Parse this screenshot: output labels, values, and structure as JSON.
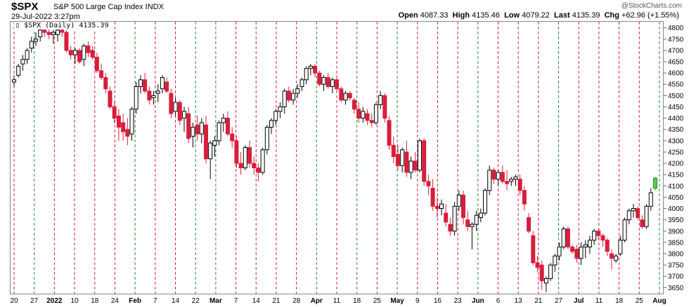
{
  "header": {
    "symbol": "$SPX",
    "name": "S&P 500 Large Cap Index  INDX",
    "date": "29-Jul-2022 3:27pm",
    "open_label": "Open",
    "open": "4087.33",
    "high_label": "High",
    "high": "4135.46",
    "low_label": "Low",
    "low": "4079.22",
    "last_label": "Last",
    "last": "4135.39",
    "chg_label": "Chg",
    "chg": "+62.96 (+1.55%)",
    "watermark": "@StockCharts.com"
  },
  "legend": {
    "text": "$SPX (Daily) 4135.39"
  },
  "colors": {
    "up": "#000000",
    "down": "#d81e3c",
    "green_line": "#2a8a2a",
    "red_line": "#d81e3c",
    "last_candle": "#55cc55"
  },
  "chart_data": {
    "type": "candlestick",
    "title": "$SPX",
    "ylim": [
      3620,
      4830
    ],
    "y_ticks": [
      3650,
      3700,
      3750,
      3800,
      3850,
      3900,
      3950,
      4000,
      4050,
      4100,
      4150,
      4200,
      4250,
      4300,
      4350,
      4400,
      4450,
      4500,
      4550,
      4600,
      4650,
      4700,
      4750,
      4800
    ],
    "x_labels": [
      "20",
      "27",
      "2022",
      "10",
      "18",
      "24",
      "Feb",
      "7",
      "14",
      "22",
      "Mar",
      "7",
      "14",
      "21",
      "28",
      "Apr",
      "11",
      "18",
      "25",
      "May",
      "9",
      "16",
      "23",
      "Jun",
      "6",
      "13",
      "21",
      "27",
      "Jul",
      "11",
      "18",
      "25",
      "Aug"
    ],
    "x_label_bold": [
      "2022",
      "Feb",
      "Mar",
      "Apr",
      "May",
      "Jun",
      "Jul",
      "Aug"
    ],
    "green_lines": [
      "27",
      "18",
      "Feb",
      "22",
      "Mar",
      "Apr",
      "May",
      "23",
      "Jun",
      "27",
      "18",
      "Aug"
    ],
    "grid": "vertical dashed red/green",
    "candles": [
      [
        4560,
        4590,
        4540,
        4570
      ],
      [
        4590,
        4640,
        4580,
        4630
      ],
      [
        4640,
        4680,
        4610,
        4660
      ],
      [
        4660,
        4710,
        4640,
        4700
      ],
      [
        4710,
        4760,
        4690,
        4740
      ],
      [
        4740,
        4780,
        4720,
        4750
      ],
      [
        4760,
        4800,
        4740,
        4790
      ],
      [
        4790,
        4810,
        4760,
        4780
      ],
      [
        4780,
        4800,
        4750,
        4770
      ],
      [
        4770,
        4790,
        4730,
        4780
      ],
      [
        4770,
        4800,
        4740,
        4790
      ],
      [
        4790,
        4810,
        4760,
        4780
      ],
      [
        4780,
        4790,
        4690,
        4700
      ],
      [
        4700,
        4720,
        4660,
        4680
      ],
      [
        4680,
        4710,
        4640,
        4700
      ],
      [
        4700,
        4710,
        4640,
        4650
      ],
      [
        4660,
        4730,
        4630,
        4720
      ],
      [
        4720,
        4740,
        4670,
        4690
      ],
      [
        4700,
        4720,
        4660,
        4670
      ],
      [
        4670,
        4690,
        4600,
        4610
      ],
      [
        4610,
        4640,
        4570,
        4580
      ],
      [
        4580,
        4600,
        4510,
        4530
      ],
      [
        4520,
        4540,
        4440,
        4450
      ],
      [
        4450,
        4470,
        4380,
        4400
      ],
      [
        4410,
        4440,
        4300,
        4360
      ],
      [
        4380,
        4420,
        4300,
        4340
      ],
      [
        4350,
        4400,
        4280,
        4320
      ],
      [
        4330,
        4450,
        4300,
        4440
      ],
      [
        4440,
        4560,
        4420,
        4540
      ],
      [
        4540,
        4590,
        4510,
        4570
      ],
      [
        4570,
        4600,
        4510,
        4520
      ],
      [
        4520,
        4540,
        4460,
        4480
      ],
      [
        4490,
        4520,
        4460,
        4500
      ],
      [
        4510,
        4550,
        4470,
        4520
      ],
      [
        4530,
        4590,
        4510,
        4580
      ],
      [
        4560,
        4580,
        4510,
        4520
      ],
      [
        4510,
        4530,
        4400,
        4420
      ],
      [
        4430,
        4490,
        4410,
        4470
      ],
      [
        4470,
        4480,
        4370,
        4390
      ],
      [
        4400,
        4450,
        4340,
        4430
      ],
      [
        4420,
        4450,
        4290,
        4310
      ],
      [
        4320,
        4380,
        4270,
        4360
      ],
      [
        4370,
        4410,
        4300,
        4330
      ],
      [
        4330,
        4400,
        4290,
        4380
      ],
      [
        4370,
        4410,
        4200,
        4220
      ],
      [
        4220,
        4300,
        4130,
        4290
      ],
      [
        4280,
        4320,
        4230,
        4300
      ],
      [
        4300,
        4390,
        4280,
        4380
      ],
      [
        4380,
        4420,
        4340,
        4400
      ],
      [
        4400,
        4430,
        4320,
        4330
      ],
      [
        4330,
        4360,
        4270,
        4300
      ],
      [
        4300,
        4320,
        4180,
        4200
      ],
      [
        4200,
        4250,
        4150,
        4180
      ],
      [
        4180,
        4280,
        4170,
        4270
      ],
      [
        4270,
        4300,
        4180,
        4200
      ],
      [
        4200,
        4230,
        4150,
        4180
      ],
      [
        4180,
        4200,
        4120,
        4160
      ],
      [
        4160,
        4270,
        4150,
        4260
      ],
      [
        4260,
        4370,
        4240,
        4360
      ],
      [
        4360,
        4400,
        4330,
        4390
      ],
      [
        4390,
        4440,
        4370,
        4430
      ],
      [
        4430,
        4470,
        4400,
        4450
      ],
      [
        4450,
        4530,
        4420,
        4520
      ],
      [
        4520,
        4540,
        4470,
        4480
      ],
      [
        4480,
        4530,
        4460,
        4510
      ],
      [
        4510,
        4550,
        4490,
        4530
      ],
      [
        4540,
        4580,
        4520,
        4570
      ],
      [
        4570,
        4630,
        4550,
        4620
      ],
      [
        4620,
        4640,
        4590,
        4630
      ],
      [
        4630,
        4640,
        4580,
        4600
      ],
      [
        4600,
        4610,
        4540,
        4550
      ],
      [
        4550,
        4590,
        4520,
        4580
      ],
      [
        4580,
        4600,
        4530,
        4540
      ],
      [
        4540,
        4580,
        4510,
        4570
      ],
      [
        4570,
        4590,
        4520,
        4530
      ],
      [
        4530,
        4540,
        4470,
        4480
      ],
      [
        4480,
        4520,
        4460,
        4510
      ],
      [
        4510,
        4520,
        4480,
        4490
      ],
      [
        4480,
        4490,
        4420,
        4440
      ],
      [
        4440,
        4470,
        4380,
        4400
      ],
      [
        4400,
        4450,
        4380,
        4430
      ],
      [
        4420,
        4440,
        4370,
        4390
      ],
      [
        4390,
        4420,
        4360,
        4380
      ],
      [
        4380,
        4470,
        4370,
        4460
      ],
      [
        4460,
        4520,
        4440,
        4500
      ],
      [
        4500,
        4510,
        4380,
        4400
      ],
      [
        4390,
        4410,
        4260,
        4280
      ],
      [
        4280,
        4320,
        4200,
        4230
      ],
      [
        4240,
        4280,
        4170,
        4190
      ],
      [
        4190,
        4270,
        4160,
        4260
      ],
      [
        4250,
        4300,
        4140,
        4160
      ],
      [
        4160,
        4230,
        4130,
        4210
      ],
      [
        4210,
        4250,
        4160,
        4170
      ],
      [
        4170,
        4310,
        4160,
        4300
      ],
      [
        4300,
        4310,
        4100,
        4120
      ],
      [
        4120,
        4150,
        4060,
        4100
      ],
      [
        4090,
        4130,
        3990,
        4010
      ],
      [
        4010,
        4050,
        3960,
        4000
      ],
      [
        4000,
        4040,
        3970,
        4020
      ],
      [
        3980,
        4020,
        3920,
        3940
      ],
      [
        3930,
        3960,
        3880,
        3900
      ],
      [
        3900,
        4030,
        3880,
        4010
      ],
      [
        4010,
        4080,
        3990,
        4060
      ],
      [
        4060,
        4080,
        3930,
        3960
      ],
      [
        3950,
        3990,
        3900,
        3920
      ],
      [
        3920,
        3940,
        3820,
        3930
      ],
      [
        3930,
        3990,
        3900,
        3970
      ],
      [
        3960,
        4000,
        3940,
        3980
      ],
      [
        3980,
        4090,
        3970,
        4080
      ],
      [
        4080,
        4190,
        4060,
        4170
      ],
      [
        4170,
        4180,
        4110,
        4130
      ],
      [
        4130,
        4170,
        4100,
        4160
      ],
      [
        4160,
        4190,
        4110,
        4120
      ],
      [
        4120,
        4170,
        4080,
        4110
      ],
      [
        4120,
        4140,
        4100,
        4130
      ],
      [
        4130,
        4150,
        4100,
        4140
      ],
      [
        4130,
        4150,
        4060,
        4080
      ],
      [
        4080,
        4100,
        3990,
        4020
      ],
      [
        3960,
        3980,
        3890,
        3900
      ],
      [
        3880,
        3900,
        3750,
        3760
      ],
      [
        3760,
        3790,
        3720,
        3740
      ],
      [
        3750,
        3770,
        3640,
        3680
      ],
      [
        3670,
        3700,
        3630,
        3690
      ],
      [
        3690,
        3760,
        3680,
        3750
      ],
      [
        3750,
        3800,
        3720,
        3790
      ],
      [
        3790,
        3850,
        3770,
        3830
      ],
      [
        3830,
        3920,
        3820,
        3910
      ],
      [
        3910,
        3920,
        3820,
        3830
      ],
      [
        3830,
        3840,
        3800,
        3810
      ],
      [
        3820,
        3840,
        3760,
        3780
      ],
      [
        3780,
        3850,
        3750,
        3830
      ],
      [
        3830,
        3860,
        3780,
        3840
      ],
      [
        3830,
        3880,
        3800,
        3860
      ],
      [
        3860,
        3910,
        3840,
        3900
      ],
      [
        3900,
        3910,
        3860,
        3880
      ],
      [
        3880,
        3890,
        3830,
        3860
      ],
      [
        3860,
        3870,
        3790,
        3810
      ],
      [
        3800,
        3820,
        3730,
        3780
      ],
      [
        3770,
        3800,
        3760,
        3790
      ],
      [
        3800,
        3880,
        3790,
        3860
      ],
      [
        3860,
        3960,
        3850,
        3950
      ],
      [
        3950,
        4000,
        3930,
        3990
      ],
      [
        3990,
        4020,
        3960,
        4000
      ],
      [
        4000,
        4010,
        3950,
        3960
      ],
      [
        3950,
        3970,
        3910,
        3920
      ],
      [
        3920,
        4020,
        3910,
        4010
      ],
      [
        4010,
        4090,
        3990,
        4070
      ],
      [
        4090,
        4140,
        4080,
        4135
      ]
    ]
  }
}
